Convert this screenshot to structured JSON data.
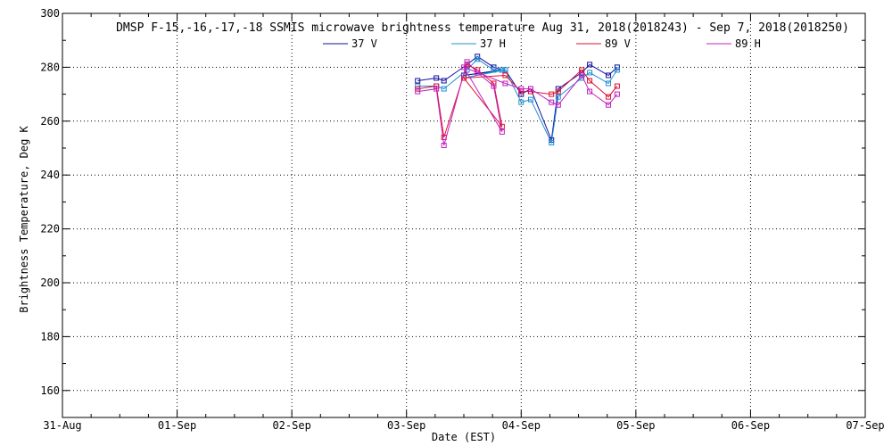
{
  "chart_data": {
    "type": "line",
    "title": "DMSP F-15,-16,-17,-18 SSMIS microwave brightness temperature Aug 31, 2018(2018243) - Sep  7, 2018(2018250)",
    "xlabel": "Date (EST)",
    "ylabel": "Brightness Temperature, Deg K",
    "x_type": "date",
    "xlim": [
      "2018-08-31T00:00",
      "2018-09-07T00:00"
    ],
    "ylim": [
      150,
      300
    ],
    "x_ticks": [
      {
        "value": "2018-08-31T00:00",
        "label": "31-Aug"
      },
      {
        "value": "2018-09-01T00:00",
        "label": "01-Sep"
      },
      {
        "value": "2018-09-02T00:00",
        "label": "02-Sep"
      },
      {
        "value": "2018-09-03T00:00",
        "label": "03-Sep"
      },
      {
        "value": "2018-09-04T00:00",
        "label": "04-Sep"
      },
      {
        "value": "2018-09-05T00:00",
        "label": "05-Sep"
      },
      {
        "value": "2018-09-06T00:00",
        "label": "06-Sep"
      },
      {
        "value": "2018-09-07T00:00",
        "label": "07-Sep"
      }
    ],
    "y_ticks": [
      {
        "value": 160,
        "label": "160"
      },
      {
        "value": 180,
        "label": "180"
      },
      {
        "value": 200,
        "label": "200"
      },
      {
        "value": 220,
        "label": "220"
      },
      {
        "value": 240,
        "label": "240"
      },
      {
        "value": 260,
        "label": "260"
      },
      {
        "value": 280,
        "label": "280"
      },
      {
        "value": 300,
        "label": "300"
      }
    ],
    "grid": true,
    "legend_position": "top-center",
    "marker": "square",
    "x": [
      "2018-09-03T02:20",
      "2018-09-03T06:15",
      "2018-09-03T07:50",
      "2018-09-03T12:40",
      "2018-09-03T14:50",
      "2018-09-03T18:15",
      "2018-09-03T20:00",
      "2018-09-03T12:00",
      "2018-09-03T20:40",
      "2018-09-04T00:00",
      "2018-09-04T02:00",
      "2018-09-04T06:20",
      "2018-09-04T07:45",
      "2018-09-04T12:40",
      "2018-09-04T14:20",
      "2018-09-04T18:15",
      "2018-09-04T20:05"
    ],
    "series": [
      {
        "name": "37 V",
        "color": "#1010a0",
        "values": [
          275,
          276,
          275,
          281,
          284,
          280,
          279,
          277,
          279,
          270,
          272,
          253,
          272,
          278,
          281,
          277,
          280
        ]
      },
      {
        "name": "37 H",
        "color": "#2090d0",
        "values": [
          273,
          273,
          272,
          279,
          283,
          279,
          279,
          276,
          279,
          267,
          268,
          252,
          269,
          276,
          278,
          274,
          279
        ]
      },
      {
        "name": "89 V",
        "color": "#e01030",
        "values": [
          272,
          273,
          254,
          281,
          279,
          274,
          258,
          276,
          277,
          271,
          271,
          270,
          271,
          279,
          275,
          269,
          273
        ]
      },
      {
        "name": "89 H",
        "color": "#c020c0",
        "values": [
          271,
          272,
          251,
          282,
          278,
          273,
          256,
          280,
          274,
          272,
          272,
          267,
          266,
          277,
          271,
          266,
          270
        ]
      }
    ]
  }
}
